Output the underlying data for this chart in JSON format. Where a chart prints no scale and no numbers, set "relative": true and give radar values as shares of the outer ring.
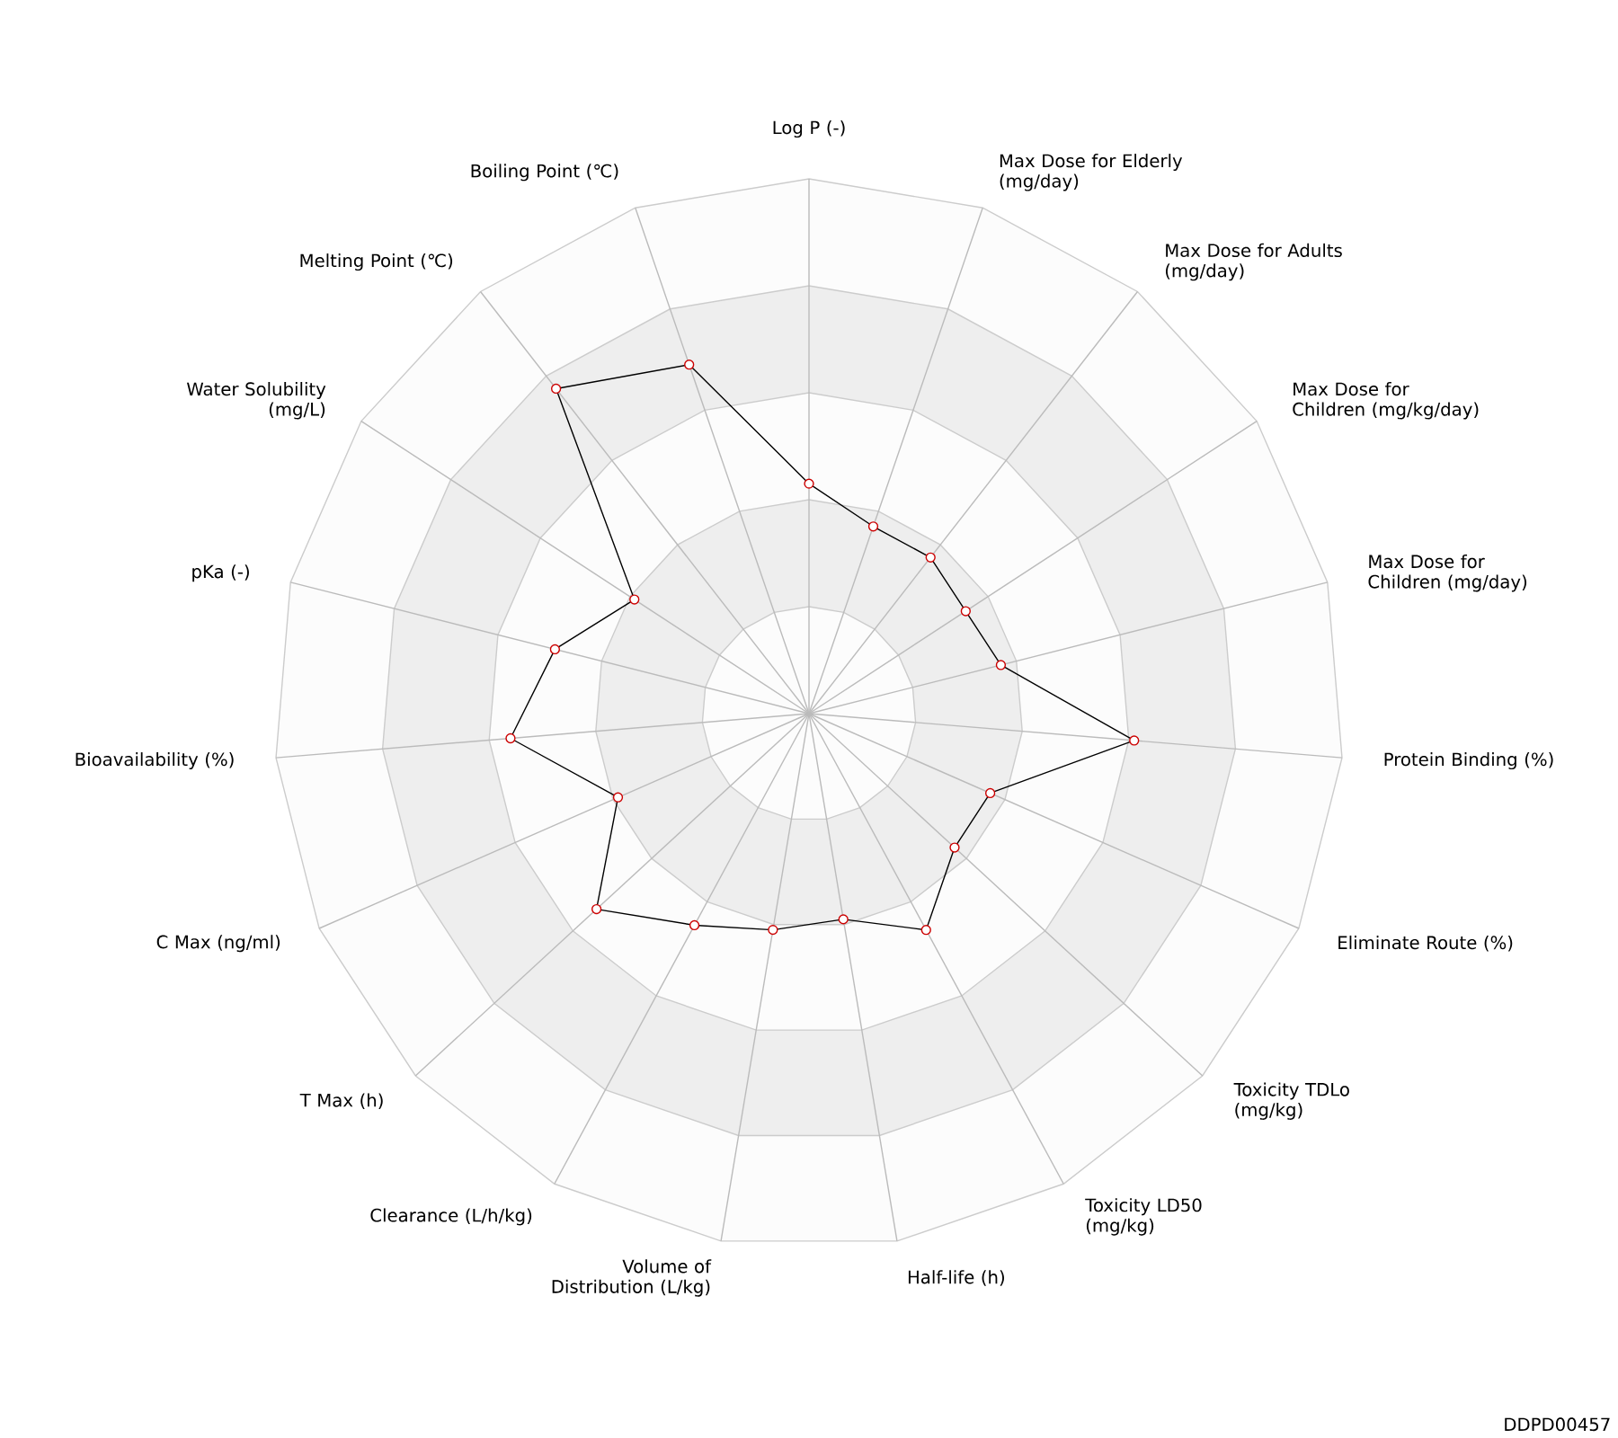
{
  "chart_data": {
    "type": "radar",
    "relative": true,
    "grid": true,
    "marker": "circle",
    "categories": [
      "Log P (-)",
      "Max Dose for Elderly (mg/day)",
      "Max Dose for Adults (mg/day)",
      "Max Dose for Children (mg/kg/day)",
      "Max Dose for Children (mg/day)",
      "Protein Binding (%)",
      "Eliminate Route (%)",
      "Toxicity TDLo (mg/kg)",
      "Toxicity LD50 (mg/kg)",
      "Half-life (h)",
      "Volume of Distribution (L/kg)",
      "Clearance (L/h/kg)",
      "T Max (h)",
      "C Max (ng/ml)",
      "Bioavailability (%)",
      "pKa (-)",
      "Water Solubility (mg/L)",
      "Melting Point (℃)",
      "Boiling Point (℃)"
    ],
    "series": [
      {
        "color": "#000000",
        "values": [
          0.43,
          0.37,
          0.37,
          0.35,
          0.37,
          0.61,
          0.37,
          0.37,
          0.46,
          0.39,
          0.41,
          0.45,
          0.54,
          0.39,
          0.56,
          0.49,
          0.39,
          0.77,
          0.69
        ]
      }
    ],
    "annotations": [
      "DDPD00457"
    ]
  }
}
